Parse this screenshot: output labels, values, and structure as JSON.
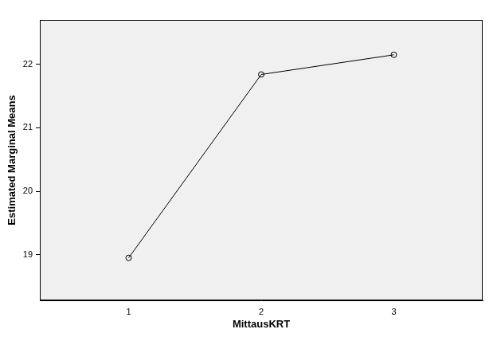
{
  "chart_data": {
    "type": "line",
    "x_label": "MittausKRT",
    "y_label": "Estimated Marginal Means",
    "x": [
      1,
      2,
      3
    ],
    "values": [
      18.95,
      21.84,
      22.15
    ],
    "color": "#000000",
    "marker": "circle",
    "xlim": [
      0.33,
      3.67
    ],
    "xticks": [
      1,
      2,
      3
    ],
    "ylim": [
      18.28,
      22.7
    ],
    "yticks": [
      19,
      20,
      21,
      22
    ],
    "grid": false
  }
}
